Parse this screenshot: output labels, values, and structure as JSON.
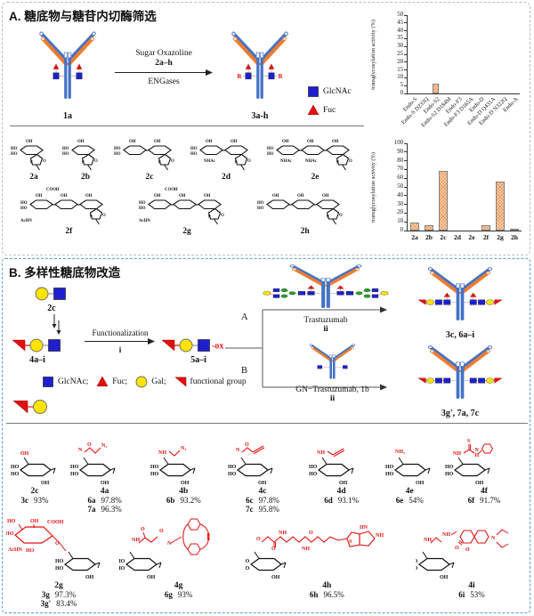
{
  "colors": {
    "glcnac": "#1F1FD0",
    "fuc": "#E01111",
    "gal": "#FFE400",
    "man": "#2E9B2E",
    "heavy_chain": "#4472C4",
    "light_chain": "#ED7D31",
    "bar_fill": "#FBD5B5",
    "bar_hatch": "#E08642",
    "bar_border": "#7F7F7F",
    "panel_a_border": "#BDBDBD",
    "panel_b_border": "#5B9BD5",
    "red_text": "#E01111"
  },
  "structure_labels": {
    "ho": "HO",
    "oh": "OH",
    "o": "O",
    "n": "N",
    "nhac": "NHAc",
    "achn": "AcHN",
    "cooh": "COOH"
  },
  "panel_a": {
    "title": "A. 糖底物与糖苷内切酶筛选",
    "scheme": {
      "substrate_label": "1a",
      "arrow_line1": "Sugar Oxazoline",
      "arrow_line2": "2a–h",
      "arrow_line3": "ENGases",
      "product_label": "3a-h",
      "r_group": "R",
      "legend": [
        {
          "sym": "glcnac",
          "label": "GlcNAc"
        },
        {
          "sym": "fuc",
          "label": "Fuc"
        }
      ]
    },
    "sugar_row1": [
      {
        "id": "2a",
        "rings": 1,
        "tags": []
      },
      {
        "id": "2b",
        "rings": 1,
        "tags": []
      },
      {
        "id": "2c",
        "rings": 2,
        "tags": []
      },
      {
        "id": "2d",
        "rings": 2,
        "tags": [
          "NHAc"
        ]
      },
      {
        "id": "2e",
        "rings": 3,
        "tags": [
          "NHAc",
          "NHAc"
        ]
      }
    ],
    "sugar_row2": [
      {
        "id": "2f",
        "rings": 3,
        "tags": [
          "AcHN",
          "COOH"
        ]
      },
      {
        "id": "2g",
        "rings": 3,
        "tags": [
          "AcHN",
          "COOH"
        ]
      },
      {
        "id": "2h",
        "rings": 3,
        "tags": []
      }
    ]
  },
  "chart_data": [
    {
      "type": "bar",
      "ylabel": "transglycosylation activity (%)",
      "ylim": [
        0,
        50
      ],
      "ytick_step": 5,
      "rotated_labels": true,
      "grid": false,
      "legend_position": "none",
      "categories": [
        "Endo-S",
        "Endo-S D233Q",
        "Endo-S2",
        "Endo-S2 D184M",
        "Endo-F3",
        "Endo-F3 D165A",
        "Endo-D",
        "Endo-D Q431A",
        "Endo-D N322Q",
        "Endo-A"
      ],
      "values": [
        0,
        0,
        6,
        0,
        0,
        0,
        0,
        0,
        0,
        0
      ]
    },
    {
      "type": "bar",
      "ylabel": "transglycosylation activity (%)",
      "ylim": [
        0,
        100
      ],
      "ytick_step": 10,
      "rotated_labels": false,
      "grid": false,
      "legend_position": "none",
      "categories": [
        "2a",
        "2b",
        "2c",
        "2d",
        "2e",
        "2f",
        "2g",
        "2h"
      ],
      "values": [
        9.5,
        6,
        68,
        0,
        0,
        6.5,
        56,
        2
      ]
    }
  ],
  "panel_b": {
    "title": "B. 多样性糖底物改造",
    "scheme": {
      "start_label": "2c",
      "intermediate_label": "4a–i",
      "func_label": "Functionalization",
      "func_step": "i",
      "activated_label": "5a–i",
      "ox_suffix": "-ox",
      "branch_a": "A",
      "branch_b": "B",
      "route_a_reagent": "Trastuzumab",
      "route_a_step": "ii",
      "route_a_product": "3c, 6a–i",
      "route_b_reagent": "GN−Trastuzumab, 1b",
      "route_b_step": "ii",
      "route_b_product": "3g', 7a, 7c"
    },
    "legend": [
      {
        "sym": "glcnac",
        "label": "GlcNAc;"
      },
      {
        "sym": "fuc",
        "label": "Fuc;"
      },
      {
        "sym": "gal",
        "label": "Gal;"
      },
      {
        "sym": "flag",
        "label": "functional group"
      }
    ],
    "compounds_row1": [
      {
        "id": "2c",
        "fg": "oh",
        "atoms": [
          "OH"
        ],
        "yields": [
          {
            "c": "3c",
            "v": "93%"
          }
        ]
      },
      {
        "id": "4a",
        "fg": "o-azide",
        "atoms": [
          "N",
          "O",
          "N₃"
        ],
        "yields": [
          {
            "c": "6a",
            "v": "97.8%"
          },
          {
            "c": "7a",
            "v": "96.3%"
          }
        ]
      },
      {
        "id": "4b",
        "fg": "nh-azide",
        "atoms": [
          "NH",
          "N₃"
        ],
        "yields": [
          {
            "c": "6b",
            "v": "93.2%"
          }
        ]
      },
      {
        "id": "4c",
        "fg": "o-alkyne",
        "atoms": [
          "N",
          "O"
        ],
        "yields": [
          {
            "c": "6c",
            "v": "97.8%"
          },
          {
            "c": "7c",
            "v": "95.8%"
          }
        ]
      },
      {
        "id": "4d",
        "fg": "nh-alkyne",
        "atoms": [
          "NH"
        ],
        "yields": [
          {
            "c": "6d",
            "v": "93.1%"
          }
        ]
      },
      {
        "id": "4e",
        "fg": "nh2",
        "atoms": [
          "NH₂"
        ],
        "yields": [
          {
            "c": "6e",
            "v": "54%"
          }
        ]
      },
      {
        "id": "4f",
        "fg": "thiourea",
        "atoms": [
          "NH",
          "S",
          "N",
          "H"
        ],
        "yields": [
          {
            "c": "6f",
            "v": "91.7%"
          }
        ]
      }
    ],
    "compounds_row2": [
      {
        "id": "2g",
        "fg": "sialyl",
        "atoms": [
          "HO",
          "OH",
          "COOH",
          "HO",
          "AcHN",
          "HO",
          "O"
        ],
        "yields": [
          {
            "c": "3g",
            "v": "97.3%"
          },
          {
            "c": "3g'",
            "v": "83.4%"
          }
        ]
      },
      {
        "id": "4g",
        "fg": "dbco",
        "atoms": [
          "NH",
          "O",
          "O",
          "N"
        ],
        "yields": [
          {
            "c": "6g",
            "v": "93%"
          }
        ]
      },
      {
        "id": "4h",
        "fg": "biotin",
        "atoms": [
          "O",
          "O",
          "NH",
          "NH",
          "O",
          "S",
          "HN",
          "NH"
        ],
        "yields": [
          {
            "c": "6h",
            "v": "96.5%"
          }
        ]
      },
      {
        "id": "4i",
        "fg": "coumarin",
        "atoms": [
          "NH",
          "NH",
          "O",
          "O",
          "N"
        ],
        "yields": [
          {
            "c": "6i",
            "v": "53%"
          }
        ]
      }
    ]
  }
}
